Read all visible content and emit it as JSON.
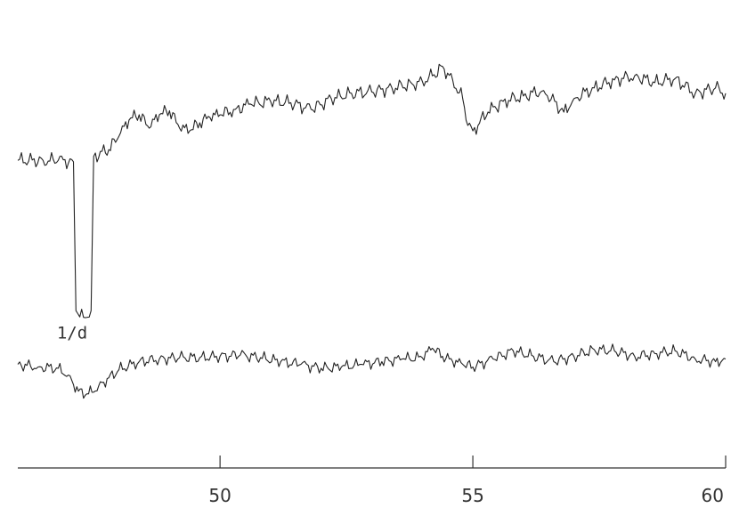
{
  "chart_data": {
    "type": "line",
    "title": "",
    "xlabel": "",
    "ylabel": "",
    "xlim": [
      46.0,
      60.0
    ],
    "x_ticks": [
      50,
      55,
      60
    ],
    "x_tick_labels": [
      "50",
      "55",
      "60"
    ],
    "grid": false,
    "legend": "none",
    "series": [
      {
        "x": [
          46.0,
          46.5,
          46.8,
          47.1,
          47.15,
          47.3,
          47.45,
          47.5,
          47.8,
          48.0,
          48.2,
          48.4,
          48.6,
          48.8,
          49.0,
          49.2,
          49.4,
          49.6,
          49.8,
          50.0,
          50.3,
          50.6,
          51.0,
          51.4,
          51.8,
          52.2,
          52.6,
          53.0,
          53.4,
          53.8,
          54.0,
          54.2,
          54.4,
          54.6,
          54.8,
          54.9,
          55.0,
          55.3,
          55.6,
          56.0,
          56.4,
          56.8,
          57.0,
          57.4,
          57.8,
          58.2,
          58.6,
          59.0,
          59.4,
          59.8,
          60.0
        ],
        "values": [
          0.62,
          0.62,
          0.62,
          0.61,
          -0.5,
          -0.55,
          -0.5,
          0.65,
          0.7,
          0.8,
          0.92,
          0.96,
          0.86,
          0.96,
          0.99,
          0.86,
          0.84,
          0.9,
          0.94,
          0.96,
          1.0,
          1.04,
          1.06,
          1.05,
          1.0,
          1.08,
          1.12,
          1.13,
          1.16,
          1.19,
          1.21,
          1.25,
          1.32,
          1.22,
          1.08,
          0.88,
          0.84,
          0.98,
          1.06,
          1.1,
          1.14,
          0.98,
          1.08,
          1.16,
          1.22,
          1.25,
          1.2,
          1.23,
          1.12,
          1.16,
          1.12
        ],
        "noise_amp": 0.06
      },
      {
        "x": [
          46.0,
          46.4,
          46.8,
          47.0,
          47.2,
          47.4,
          47.6,
          47.8,
          48.0,
          48.4,
          48.8,
          49.2,
          49.6,
          50.0,
          50.4,
          50.8,
          51.2,
          51.6,
          52.0,
          52.4,
          52.8,
          53.2,
          53.6,
          54.0,
          54.2,
          54.4,
          54.6,
          54.8,
          55.0,
          55.4,
          55.8,
          56.2,
          56.6,
          57.0,
          57.4,
          57.8,
          58.2,
          58.6,
          59.0,
          59.4,
          59.8,
          60.0
        ],
        "values": [
          -0.9,
          -0.92,
          -0.93,
          -0.98,
          -1.1,
          -1.12,
          -1.06,
          -1.0,
          -0.94,
          -0.88,
          -0.86,
          -0.85,
          -0.85,
          -0.84,
          -0.83,
          -0.85,
          -0.88,
          -0.9,
          -0.93,
          -0.92,
          -0.9,
          -0.88,
          -0.86,
          -0.85,
          -0.78,
          -0.84,
          -0.88,
          -0.9,
          -0.92,
          -0.86,
          -0.8,
          -0.84,
          -0.88,
          -0.84,
          -0.79,
          -0.8,
          -0.84,
          -0.82,
          -0.8,
          -0.86,
          -0.88,
          -0.86
        ],
        "noise_amp": 0.05
      }
    ],
    "ylim": [
      -1.5,
      1.55
    ],
    "annotations": [
      {
        "text": "1/d",
        "x": 47.3,
        "y": -0.55
      }
    ]
  }
}
